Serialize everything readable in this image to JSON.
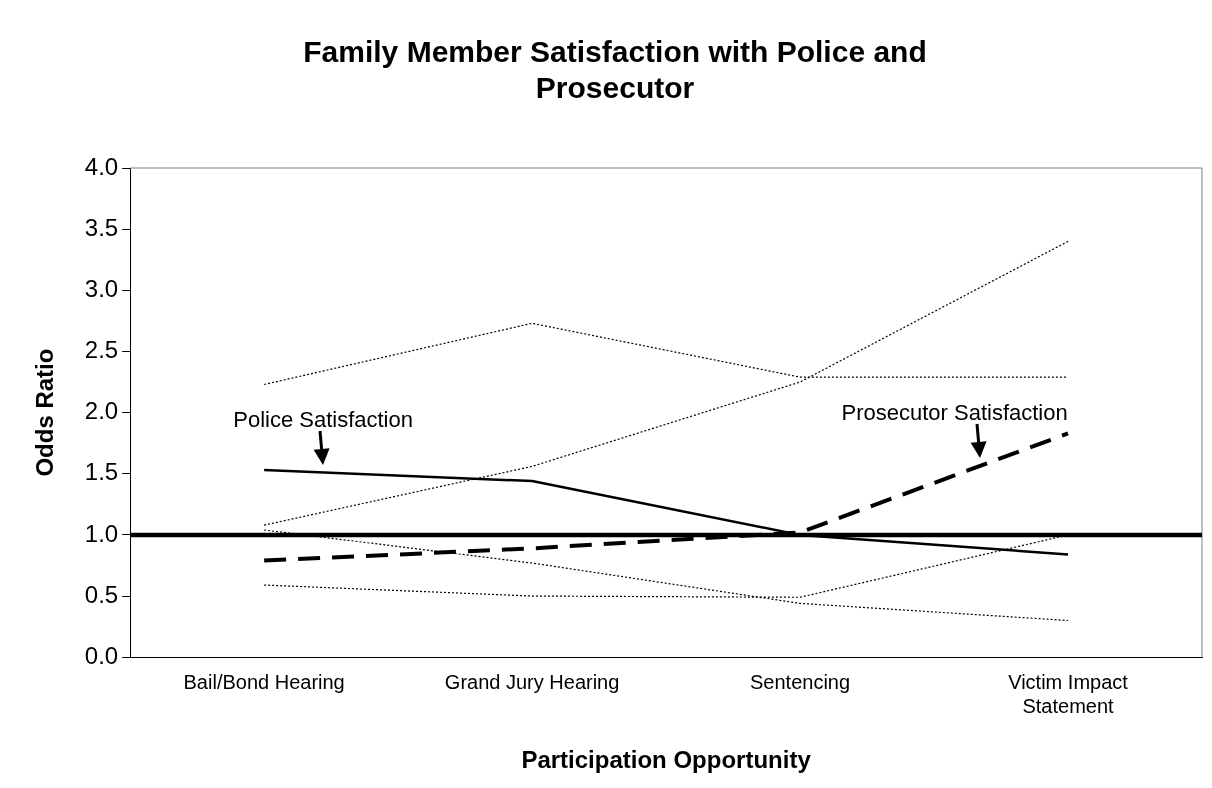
{
  "chart_data": {
    "type": "line",
    "title": "Family Member Satisfaction with Police and Prosecutor",
    "xlabel": "Participation Opportunity",
    "ylabel": "Odds Ratio",
    "categories": [
      "Bail/Bond Hearing",
      "Grand Jury Hearing",
      "Sentencing",
      "Victim Impact Statement"
    ],
    "series": [
      {
        "name": "Police Satisfaction",
        "color": "#000000",
        "line_style": "solid",
        "values": [
          1.53,
          1.44,
          1.0,
          0.84
        ]
      },
      {
        "color": "#000000",
        "line_style": "dotted",
        "values": [
          2.23,
          2.73,
          2.29,
          2.29
        ]
      },
      {
        "color": "#000000",
        "line_style": "dotted",
        "values": [
          1.04,
          0.77,
          0.44,
          0.3
        ]
      },
      {
        "name": "Prosecutor Satisfaction",
        "color": "#000000",
        "line_style": "dashed",
        "values": [
          0.79,
          0.89,
          1.02,
          1.83
        ]
      },
      {
        "color": "#000000",
        "line_style": "dotted",
        "values": [
          1.08,
          1.56,
          2.25,
          3.4
        ]
      },
      {
        "color": "#000000",
        "line_style": "dotted",
        "values": [
          0.59,
          0.5,
          0.49,
          1.0
        ]
      }
    ],
    "ylim": [
      0,
      4
    ],
    "yticks": [
      {
        "value": 0,
        "label": "0.0"
      },
      {
        "value": 0.5,
        "label": "0.5"
      },
      {
        "value": 1,
        "label": "1.0"
      },
      {
        "value": 1.5,
        "label": "1.5"
      },
      {
        "value": 2,
        "label": "2.0"
      },
      {
        "value": 2.5,
        "label": "2.5"
      },
      {
        "value": 3,
        "label": "3.0"
      },
      {
        "value": 3.5,
        "label": "3.5"
      },
      {
        "value": 4,
        "label": "4.0"
      }
    ],
    "ref_lines": [
      {
        "axis": "y",
        "value": 1,
        "color": "#000000",
        "line_style": "solid"
      }
    ],
    "grid": false,
    "legend": false,
    "marker": "none"
  }
}
